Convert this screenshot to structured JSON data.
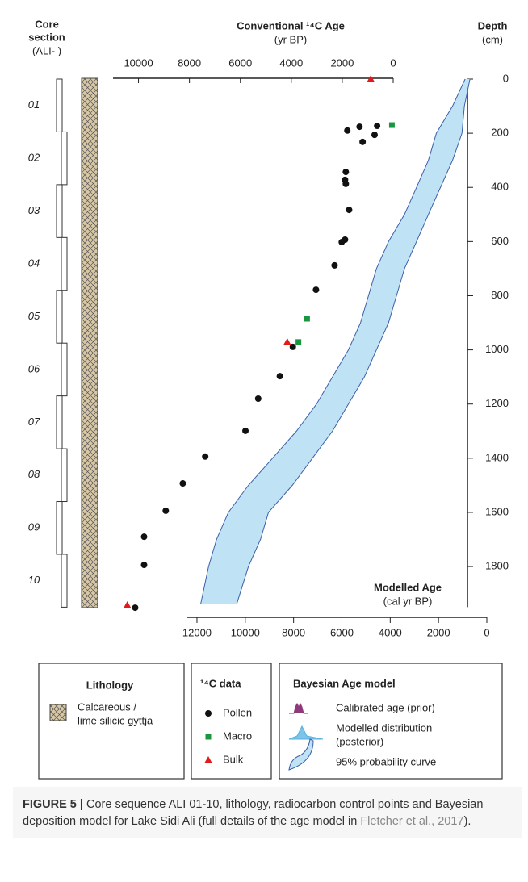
{
  "chart_data": {
    "type": "scatter",
    "core_title": [
      "Core",
      "section",
      "(ALI- )"
    ],
    "x_title": "Conventional ¹⁴C Age",
    "x_unit": "(yr BP)",
    "y_title": "Depth",
    "y_unit": "(cm)",
    "x2_title": "Modelled Age",
    "x2_unit": "(cal yr BP)",
    "xlim": [
      11000,
      0
    ],
    "xticks": [
      10000,
      8000,
      6000,
      4000,
      2000,
      0
    ],
    "x2lim": [
      12400,
      0
    ],
    "x2ticks": [
      12000,
      10000,
      8000,
      6000,
      4000,
      2000,
      0
    ],
    "ylim": [
      0,
      1950
    ],
    "yticks": [
      0,
      200,
      400,
      600,
      800,
      1000,
      1200,
      1400,
      1600,
      1800
    ],
    "sections": [
      "01",
      "02",
      "03",
      "04",
      "05",
      "06",
      "07",
      "08",
      "09",
      "10"
    ],
    "series": [
      {
        "name": "Pollen",
        "color": "#111111",
        "marker": "circle",
        "x": [
          1800,
          1320,
          630,
          730,
          1200,
          1860,
          1890,
          1860,
          1730,
          1890,
          2020,
          2300,
          3030,
          3940,
          4450,
          5300,
          5800,
          7380,
          8260,
          8930,
          9780,
          9780,
          10130
        ],
        "y": [
          190,
          176,
          173,
          206,
          232,
          343,
          372,
          387,
          483,
          593,
          602,
          688,
          778,
          989,
          1097,
          1180,
          1299,
          1394,
          1493,
          1594,
          1690,
          1794,
          1952
        ]
      },
      {
        "name": "Macro",
        "color": "#1a9641",
        "marker": "square",
        "x": [
          50,
          3380,
          3720
        ],
        "y": [
          170,
          885,
          971
        ]
      },
      {
        "name": "Bulk",
        "color": "#e31a1c",
        "marker": "triangle",
        "x": [
          880,
          4160,
          10440
        ],
        "y": [
          0,
          971,
          1943
        ]
      }
    ],
    "model": {
      "name": "95% probability curve",
      "color": "#bfe3f5",
      "edge": "#3b5fa8",
      "depth": [
        0,
        100,
        200,
        300,
        400,
        500,
        600,
        700,
        800,
        900,
        1000,
        1100,
        1200,
        1300,
        1400,
        1500,
        1600,
        1700,
        1800,
        1940
      ],
      "old": [
        900,
        1420,
        2090,
        2420,
        2910,
        3410,
        4070,
        4570,
        4900,
        5230,
        5730,
        6390,
        7050,
        7880,
        8870,
        9870,
        10700,
        11190,
        11520,
        11850
      ],
      "young": [
        700,
        930,
        1030,
        1420,
        1920,
        2420,
        2910,
        3410,
        3740,
        4070,
        4570,
        5070,
        5730,
        6390,
        7220,
        8050,
        9040,
        9370,
        9870,
        10360
      ]
    }
  },
  "legend": {
    "lithology_title": "Lithology",
    "lithology_label": [
      "Calcareous /",
      "lime silicic gyttja"
    ],
    "data_title": "¹⁴C data",
    "model_title": "Bayesian Age model",
    "prior": "Calibrated age (prior)",
    "posterior": [
      "Modelled distribution",
      "(posterior)"
    ]
  },
  "caption": {
    "label": "FIGURE 5 |",
    "text": " Core sequence ALI 01-10, lithology, radiocarbon control points and Bayesian deposition model for Lake Sidi Ali (full details of the age model in ",
    "link": "Fletcher et al., 2017",
    "end": ")."
  }
}
